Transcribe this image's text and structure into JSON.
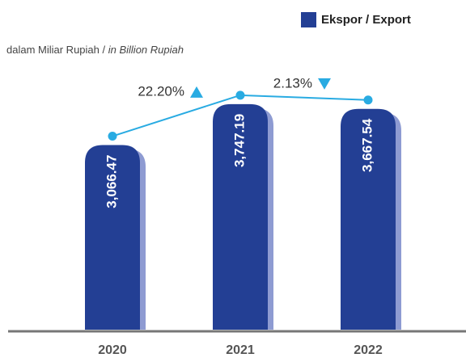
{
  "chart_data": {
    "type": "bar",
    "subtitle": "dalam Miliar Rupiah /",
    "subtitle_en": "in Billion Rupiah",
    "categories": [
      "2020",
      "2021",
      "2022"
    ],
    "series": [
      {
        "name": "Ekspor / Export",
        "color": "#233f94",
        "shadow_color": "#8e9bd2",
        "line_color": "#29abe2",
        "values": [
          3066.47,
          3747.19,
          3667.54
        ],
        "value_labels": [
          "3,066.47",
          "3,747.19",
          "3,667.54"
        ]
      }
    ],
    "annotations": [
      {
        "text": "22.20%",
        "direction": "up"
      },
      {
        "text": "2.13%",
        "direction": "down"
      }
    ],
    "ylim": [
      0,
      4000
    ],
    "legend": "top-right"
  }
}
